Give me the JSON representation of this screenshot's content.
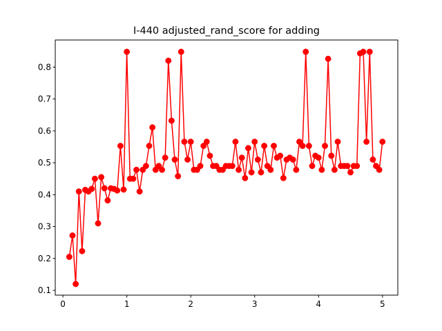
{
  "chart_data": {
    "type": "line",
    "title": "I-440 adjusted_rand_score for adding",
    "xlabel": "",
    "ylabel": "",
    "xlim": [
      -0.12,
      5.24
    ],
    "ylim": [
      0.085,
      0.885
    ],
    "x_ticks": [
      0,
      1,
      2,
      3,
      4,
      5
    ],
    "y_ticks": [
      0.1,
      0.2,
      0.3,
      0.4,
      0.5,
      0.6,
      0.7,
      0.8
    ],
    "grid": false,
    "legend": "none",
    "series": [
      {
        "color": "#ff0000",
        "marker": "circle",
        "x": [
          0.1,
          0.15,
          0.2,
          0.25,
          0.3,
          0.35,
          0.4,
          0.45,
          0.5,
          0.55,
          0.6,
          0.65,
          0.7,
          0.75,
          0.8,
          0.85,
          0.9,
          0.95,
          1.0,
          1.05,
          1.1,
          1.15,
          1.2,
          1.25,
          1.3,
          1.35,
          1.4,
          1.45,
          1.5,
          1.55,
          1.6,
          1.65,
          1.7,
          1.75,
          1.8,
          1.85,
          1.9,
          1.95,
          2.0,
          2.05,
          2.1,
          2.15,
          2.2,
          2.25,
          2.3,
          2.35,
          2.4,
          2.45,
          2.5,
          2.55,
          2.6,
          2.65,
          2.7,
          2.75,
          2.8,
          2.85,
          2.9,
          2.95,
          3.0,
          3.05,
          3.1,
          3.15,
          3.2,
          3.25,
          3.3,
          3.35,
          3.4,
          3.45,
          3.5,
          3.55,
          3.6,
          3.65,
          3.7,
          3.75,
          3.8,
          3.85,
          3.9,
          3.95,
          4.0,
          4.05,
          4.1,
          4.15,
          4.2,
          4.25,
          4.3,
          4.35,
          4.4,
          4.45,
          4.5,
          4.55,
          4.6,
          4.65,
          4.7,
          4.75,
          4.8,
          4.85,
          4.9,
          4.95,
          5.0
        ],
        "y": [
          0.205,
          0.272,
          0.12,
          0.41,
          0.223,
          0.415,
          0.41,
          0.418,
          0.45,
          0.31,
          0.455,
          0.42,
          0.382,
          0.42,
          0.418,
          0.413,
          0.553,
          0.416,
          0.848,
          0.45,
          0.45,
          0.478,
          0.41,
          0.478,
          0.49,
          0.553,
          0.611,
          0.478,
          0.49,
          0.478,
          0.516,
          0.82,
          0.632,
          0.51,
          0.458,
          0.848,
          0.566,
          0.51,
          0.566,
          0.478,
          0.478,
          0.49,
          0.553,
          0.566,
          0.522,
          0.49,
          0.49,
          0.478,
          0.478,
          0.49,
          0.49,
          0.49,
          0.566,
          0.478,
          0.516,
          0.452,
          0.546,
          0.47,
          0.566,
          0.51,
          0.47,
          0.553,
          0.49,
          0.478,
          0.553,
          0.516,
          0.522,
          0.452,
          0.51,
          0.516,
          0.51,
          0.478,
          0.566,
          0.553,
          0.848,
          0.553,
          0.49,
          0.522,
          0.516,
          0.478,
          0.553,
          0.826,
          0.522,
          0.478,
          0.566,
          0.49,
          0.49,
          0.49,
          0.47,
          0.49,
          0.49,
          0.843,
          0.848,
          0.566,
          0.848,
          0.51,
          0.49,
          0.478,
          0.566
        ]
      }
    ]
  }
}
